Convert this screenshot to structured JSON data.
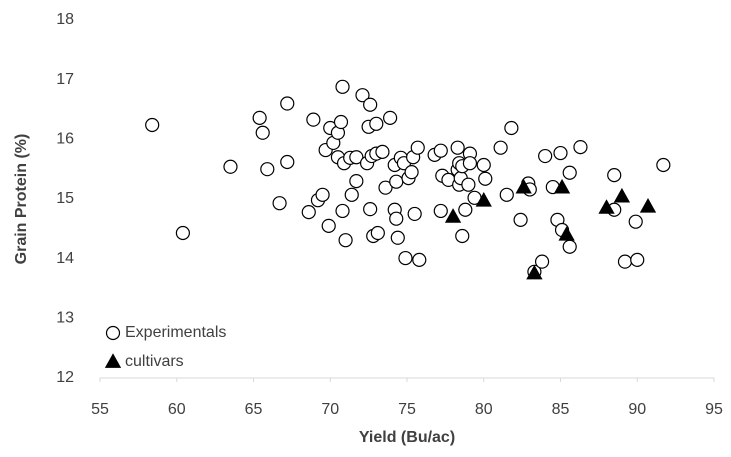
{
  "chart_data": {
    "type": "scatter",
    "x_label": "Yield (Bu/ac)",
    "y_label": "Grain Protein (%)",
    "xlim": [
      55,
      95
    ],
    "xticks": [
      55,
      60,
      65,
      70,
      75,
      80,
      85,
      90,
      95
    ],
    "ylim": [
      12,
      18
    ],
    "yticks": [
      12,
      13,
      14,
      15,
      16,
      17,
      18
    ],
    "grid": false,
    "legend": "lower left",
    "series": [
      {
        "name": "Experimentals",
        "marker": "circle",
        "color": "#000000",
        "fill": "#ffffff",
        "x": [
          58.4,
          60.4,
          63.5,
          65.4,
          65.6,
          65.9,
          66.7,
          67.2,
          67.2,
          68.6,
          68.9,
          69.2,
          69.5,
          69.7,
          69.9,
          70.0,
          70.2,
          70.5,
          70.5,
          70.7,
          70.8,
          70.8,
          70.9,
          71.0,
          71.3,
          71.4,
          71.7,
          71.7,
          72.1,
          72.4,
          72.5,
          72.6,
          72.6,
          72.7,
          72.8,
          73.0,
          73.0,
          73.1,
          73.4,
          73.6,
          73.9,
          74.2,
          74.2,
          74.3,
          74.3,
          74.4,
          74.6,
          74.8,
          74.9,
          75.1,
          75.3,
          75.4,
          75.5,
          75.7,
          75.8,
          76.8,
          77.2,
          77.2,
          77.3,
          77.7,
          78.3,
          78.3,
          78.4,
          78.4,
          78.5,
          78.6,
          78.6,
          78.8,
          79.0,
          79.1,
          79.1,
          79.4,
          80.0,
          80.1,
          81.1,
          81.8,
          81.5,
          82.4,
          82.9,
          83.0,
          83.3,
          83.8,
          84.0,
          84.5,
          84.8,
          85.0,
          85.1,
          85.6,
          85.6,
          86.3,
          88.5,
          88.5,
          89.2,
          89.9,
          90.0,
          91.7
        ],
        "values": [
          16.24,
          14.43,
          15.54,
          16.36,
          16.11,
          15.5,
          14.93,
          16.6,
          15.62,
          14.78,
          16.33,
          14.98,
          15.07,
          15.82,
          14.55,
          16.19,
          15.94,
          15.7,
          16.11,
          16.29,
          16.88,
          14.8,
          15.6,
          14.31,
          15.69,
          15.07,
          15.3,
          15.7,
          16.74,
          15.6,
          16.21,
          16.58,
          14.83,
          15.72,
          14.38,
          16.26,
          15.76,
          14.43,
          15.79,
          15.19,
          16.36,
          14.82,
          15.57,
          15.29,
          14.67,
          14.35,
          15.69,
          15.6,
          14.01,
          15.35,
          15.45,
          15.7,
          14.75,
          15.86,
          13.98,
          15.74,
          15.81,
          14.8,
          15.39,
          15.32,
          15.49,
          15.86,
          15.6,
          15.24,
          15.35,
          15.55,
          14.38,
          14.82,
          15.24,
          15.76,
          15.6,
          15.02,
          15.57,
          15.34,
          15.86,
          16.19,
          15.07,
          14.65,
          15.26,
          15.16,
          13.78,
          13.95,
          15.72,
          15.2,
          14.65,
          15.77,
          14.48,
          14.2,
          15.44,
          15.87,
          15.4,
          14.82,
          13.95,
          14.62,
          13.98,
          15.57
        ]
      },
      {
        "name": "cultivars",
        "marker": "triangle",
        "color": "#000000",
        "fill": "#000000",
        "x": [
          78.0,
          80.0,
          82.6,
          83.3,
          85.1,
          85.4,
          88.0,
          89.0,
          90.7
        ],
        "values": [
          14.7,
          14.97,
          15.19,
          13.75,
          15.19,
          14.4,
          14.85,
          15.04,
          14.87
        ]
      }
    ]
  }
}
